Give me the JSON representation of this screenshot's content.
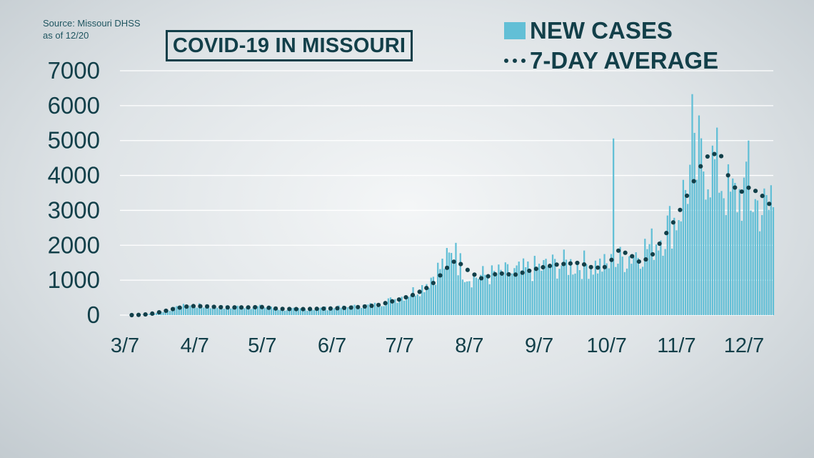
{
  "source": {
    "line1": "Source: Missouri DHSS",
    "line2": "as of 12/20"
  },
  "chart_data": {
    "type": "bar",
    "title": "COVID-19 IN MISSOURI",
    "xlabel": "",
    "ylabel": "",
    "ylim": [
      0,
      7000
    ],
    "yticks": [
      "0",
      "1000",
      "2000",
      "3000",
      "4000",
      "5000",
      "6000",
      "7000"
    ],
    "xticks": [
      "3/7",
      "4/7",
      "5/7",
      "6/7",
      "7/7",
      "8/7",
      "9/7",
      "10/7",
      "11/7",
      "12/7"
    ],
    "x_start_date": "2020-03-07",
    "x_end_date": "2020-12-20",
    "grid": true,
    "legend_position": "top-right",
    "colors": {
      "bars": "#62bfd6",
      "average": "#123f49",
      "text": "#123f49",
      "grid": "#ffffff"
    },
    "series": [
      {
        "name": "NEW CASES",
        "type": "bar",
        "anchors": [
          [
            "2020-03-07",
            0
          ],
          [
            "2020-03-15",
            10
          ],
          [
            "2020-03-20",
            50
          ],
          [
            "2020-03-27",
            150
          ],
          [
            "2020-04-03",
            270
          ],
          [
            "2020-04-10",
            260
          ],
          [
            "2020-04-20",
            220
          ],
          [
            "2020-04-30",
            240
          ],
          [
            "2020-05-07",
            230
          ],
          [
            "2020-05-17",
            160
          ],
          [
            "2020-05-27",
            170
          ],
          [
            "2020-06-07",
            200
          ],
          [
            "2020-06-17",
            240
          ],
          [
            "2020-06-27",
            300
          ],
          [
            "2020-07-07",
            500
          ],
          [
            "2020-07-17",
            800
          ],
          [
            "2020-07-24",
            1300
          ],
          [
            "2020-07-31",
            1700
          ],
          [
            "2020-08-07",
            1100
          ],
          [
            "2020-08-17",
            1150
          ],
          [
            "2020-08-27",
            1200
          ],
          [
            "2020-09-07",
            1350
          ],
          [
            "2020-09-17",
            1450
          ],
          [
            "2020-09-27",
            1450
          ],
          [
            "2020-10-07",
            1400
          ],
          [
            "2020-10-17",
            1700
          ],
          [
            "2020-10-27",
            2000
          ],
          [
            "2020-11-07",
            2800
          ],
          [
            "2020-11-13",
            4000
          ],
          [
            "2020-11-20",
            4400
          ],
          [
            "2020-11-25",
            4200
          ],
          [
            "2020-12-01",
            3300
          ],
          [
            "2020-12-07",
            3500
          ],
          [
            "2020-12-14",
            3100
          ],
          [
            "2020-12-20",
            2900
          ]
        ],
        "peaks": [
          [
            "2020-08-01",
            2070
          ],
          [
            "2020-10-10",
            5060
          ],
          [
            "2020-11-14",
            6330
          ],
          [
            "2020-11-17",
            5720
          ],
          [
            "2020-12-09",
            5000
          ],
          [
            "2020-12-19",
            3720
          ]
        ]
      },
      {
        "name": "7-DAY AVERAGE",
        "type": "dotted-line",
        "points": [
          [
            "2020-03-10",
            0
          ],
          [
            "2020-03-15",
            10
          ],
          [
            "2020-03-20",
            50
          ],
          [
            "2020-03-25",
            120
          ],
          [
            "2020-03-30",
            200
          ],
          [
            "2020-04-05",
            260
          ],
          [
            "2020-04-12",
            250
          ],
          [
            "2020-04-20",
            220
          ],
          [
            "2020-04-30",
            220
          ],
          [
            "2020-05-07",
            230
          ],
          [
            "2020-05-14",
            180
          ],
          [
            "2020-05-24",
            170
          ],
          [
            "2020-06-07",
            190
          ],
          [
            "2020-06-17",
            220
          ],
          [
            "2020-06-27",
            280
          ],
          [
            "2020-07-07",
            450
          ],
          [
            "2020-07-14",
            600
          ],
          [
            "2020-07-21",
            850
          ],
          [
            "2020-07-28",
            1350
          ],
          [
            "2020-08-01",
            1580
          ],
          [
            "2020-08-07",
            1250
          ],
          [
            "2020-08-12",
            1050
          ],
          [
            "2020-08-20",
            1200
          ],
          [
            "2020-08-27",
            1150
          ],
          [
            "2020-09-07",
            1350
          ],
          [
            "2020-09-15",
            1450
          ],
          [
            "2020-09-25",
            1500
          ],
          [
            "2020-10-01",
            1350
          ],
          [
            "2020-10-07",
            1380
          ],
          [
            "2020-10-12",
            1850
          ],
          [
            "2020-10-17",
            1750
          ],
          [
            "2020-10-22",
            1500
          ],
          [
            "2020-10-27",
            1700
          ],
          [
            "2020-11-01",
            2200
          ],
          [
            "2020-11-07",
            2800
          ],
          [
            "2020-11-13",
            3600
          ],
          [
            "2020-11-18",
            4300
          ],
          [
            "2020-11-22",
            4650
          ],
          [
            "2020-11-27",
            4550
          ],
          [
            "2020-12-01",
            3800
          ],
          [
            "2020-12-05",
            3500
          ],
          [
            "2020-12-09",
            3650
          ],
          [
            "2020-12-14",
            3500
          ],
          [
            "2020-12-20",
            3050
          ]
        ]
      }
    ]
  }
}
